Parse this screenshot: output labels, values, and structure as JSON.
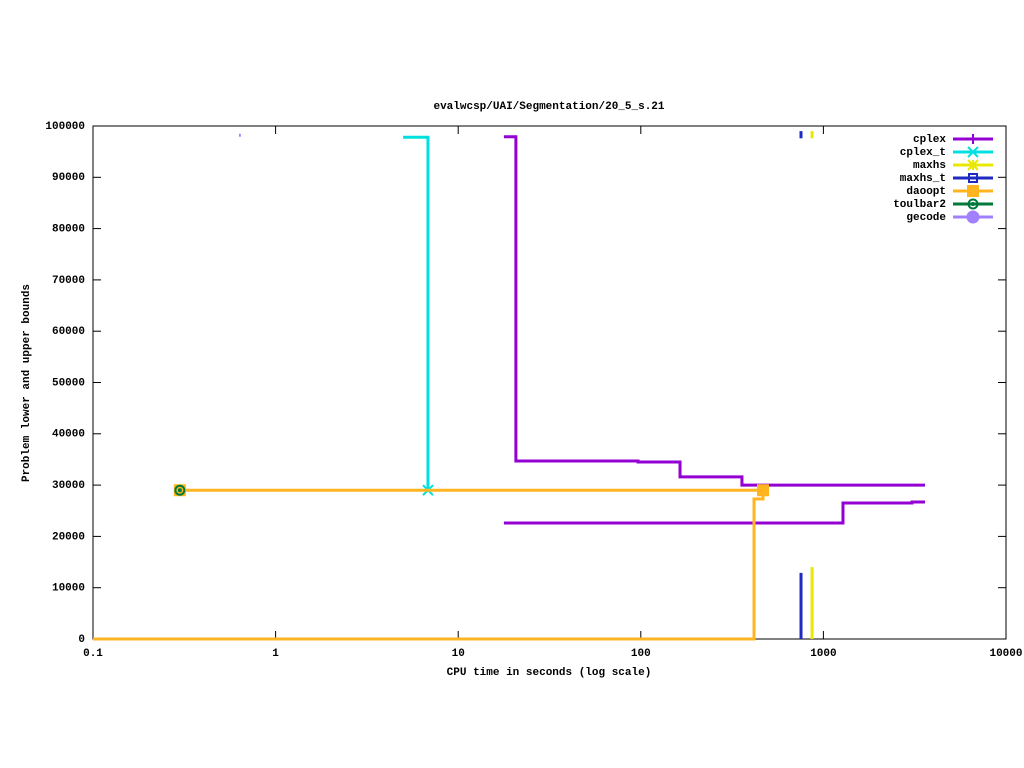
{
  "chart_data": {
    "type": "step",
    "title": "evalwcsp/UAI/Segmentation/20_5_s.21",
    "xlabel": "CPU time in seconds (log scale)",
    "ylabel": "Problem lower and upper bounds",
    "xlog": true,
    "xlim": [
      0.1,
      10000
    ],
    "xticks": [
      0.1,
      1,
      10,
      100,
      1000,
      10000
    ],
    "ylim": [
      0,
      100000
    ],
    "yticks": [
      0,
      10000,
      20000,
      30000,
      40000,
      50000,
      60000,
      70000,
      80000,
      90000,
      100000
    ],
    "legend": "top-right",
    "series": [
      {
        "name": "cplex",
        "color": "#9400d3",
        "marker": "plus",
        "segments": [
          {
            "x": [
              17.8,
              20.7,
              96.6,
              164,
              358,
              3600
            ],
            "values": [
              97900,
              34700,
              34500,
              31600,
              30000,
              30000
            ]
          },
          {
            "x": [
              17.8,
              1280,
              3055,
              3600
            ],
            "values": [
              22600,
              26500,
              26700,
              26700
            ]
          }
        ]
      },
      {
        "name": "cplex_t",
        "color": "#00e0e0",
        "marker": "cross",
        "segments": [
          {
            "x": [
              4.99,
              6.83
            ],
            "values": [
              97800,
              29000
            ]
          }
        ],
        "points": {
          "x": [
            6.83
          ],
          "values": [
            29000
          ]
        }
      },
      {
        "name": "maxhs",
        "color": "#e8e800",
        "marker": "star",
        "segments": [
          {
            "x": [
              867,
              867
            ],
            "values": [
              0,
              14000
            ]
          },
          {
            "x": [
              867,
              867
            ],
            "values": [
              97600,
              99000
            ]
          }
        ]
      },
      {
        "name": "maxhs_t",
        "color": "#1f2ac0",
        "marker": "box",
        "segments": [
          {
            "x": [
              754,
              754
            ],
            "values": [
              0,
              12900
            ]
          },
          {
            "x": [
              754,
              754
            ],
            "values": [
              97600,
              99000
            ]
          }
        ]
      },
      {
        "name": "daoopt",
        "color": "#ffb520",
        "marker": "fbox",
        "segments": [
          {
            "x": [
              0.299,
              467
            ],
            "values": [
              29000,
              29000
            ]
          },
          {
            "x": [
              0.1,
              417,
              467
            ],
            "values": [
              0,
              27300,
              29000
            ]
          }
        ],
        "points": {
          "x": [
            0.299,
            467
          ],
          "values": [
            29000,
            29000
          ]
        }
      },
      {
        "name": "toulbar2",
        "color": "#007a3a",
        "marker": "circle",
        "points": {
          "x": [
            0.299
          ],
          "values": [
            29000
          ]
        }
      },
      {
        "name": "gecode",
        "color": "#a080ff",
        "marker": "fcircle",
        "segments": [
          {
            "x": [
              0.63,
              0.645
            ],
            "values": [
              98200,
              98200
            ]
          }
        ]
      }
    ]
  }
}
